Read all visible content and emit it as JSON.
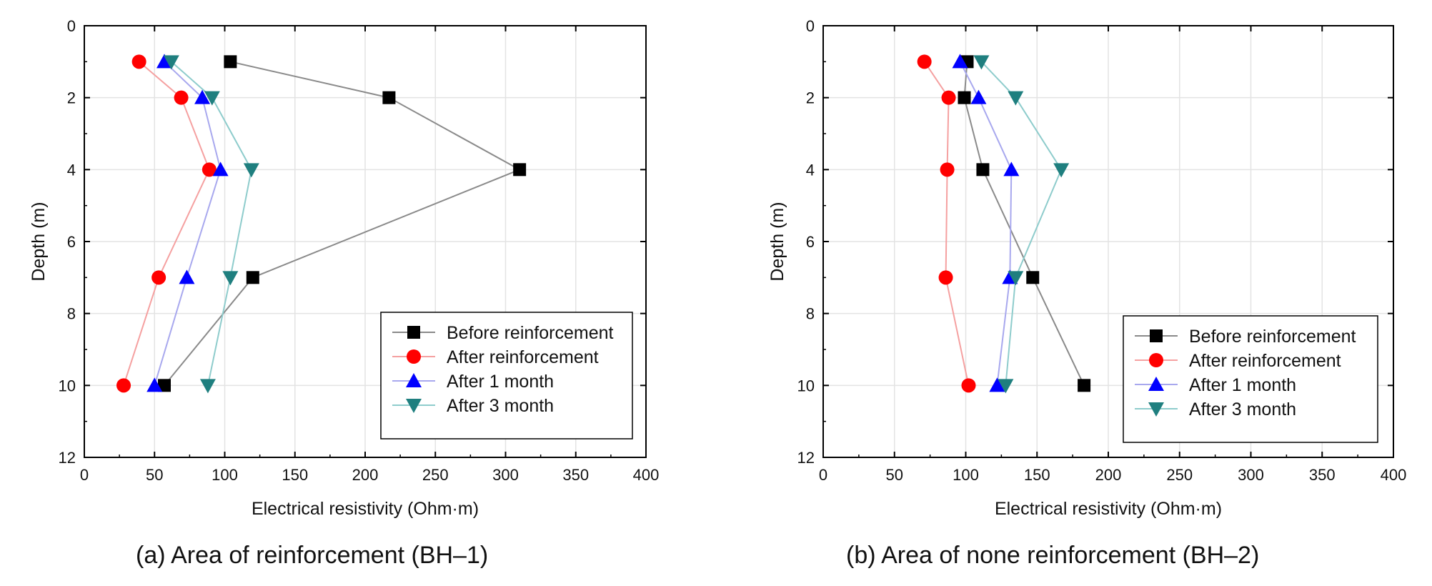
{
  "chart_data": [
    {
      "type": "line",
      "panel": "a",
      "caption": "(a) Area of reinforcement (BH–1)",
      "xlabel": "Electrical resistivity (Ohm·m)",
      "ylabel": "Depth (m)",
      "xlim": [
        0,
        400
      ],
      "ylim": [
        12,
        0
      ],
      "xticks": [
        0,
        50,
        100,
        150,
        200,
        250,
        300,
        350,
        400
      ],
      "yticks": [
        0,
        2,
        4,
        6,
        8,
        10,
        12
      ],
      "grid": true,
      "legend_position": "bottom-right",
      "series": [
        {
          "name": "Before reinforcement",
          "color": "#000000",
          "line_color": "#8a8a8a",
          "marker": "square",
          "x": [
            104,
            217,
            310,
            120,
            57
          ],
          "y": [
            1,
            2,
            4,
            7,
            10
          ]
        },
        {
          "name": "After reinforcement",
          "color": "#ff0000",
          "line_color": "#f5a0a0",
          "marker": "circle",
          "x": [
            39,
            69,
            89,
            53,
            28
          ],
          "y": [
            1,
            2,
            4,
            7,
            10
          ]
        },
        {
          "name": "After 1 month",
          "color": "#0000ff",
          "line_color": "#a8a8ee",
          "marker": "triangle-up",
          "x": [
            57,
            84,
            97,
            73,
            50
          ],
          "y": [
            1,
            2,
            4,
            7,
            10
          ]
        },
        {
          "name": "After 3 month",
          "color": "#1f7f7f",
          "line_color": "#8ecccc",
          "marker": "triangle-down",
          "x": [
            62,
            91,
            119,
            104,
            88
          ],
          "y": [
            1,
            2,
            4,
            7,
            10
          ]
        }
      ]
    },
    {
      "type": "line",
      "panel": "b",
      "caption": "(b) Area of none reinforcement (BH–2)",
      "xlabel": "Electrical resistivity (Ohm·m)",
      "ylabel": "Depth (m)",
      "xlim": [
        0,
        400
      ],
      "ylim": [
        12,
        0
      ],
      "xticks": [
        0,
        50,
        100,
        150,
        200,
        250,
        300,
        350,
        400
      ],
      "yticks": [
        0,
        2,
        4,
        6,
        8,
        10,
        12
      ],
      "grid": true,
      "legend_position": "bottom-right",
      "series": [
        {
          "name": "Before reinforcement",
          "color": "#000000",
          "line_color": "#8a8a8a",
          "marker": "square",
          "x": [
            101,
            99,
            112,
            147,
            183
          ],
          "y": [
            1,
            2,
            4,
            7,
            10
          ]
        },
        {
          "name": "After reinforcement",
          "color": "#ff0000",
          "line_color": "#f5a0a0",
          "marker": "circle",
          "x": [
            71,
            88,
            87,
            86,
            102
          ],
          "y": [
            1,
            2,
            4,
            7,
            10
          ]
        },
        {
          "name": "After 1 month",
          "color": "#0000ff",
          "line_color": "#a8a8ee",
          "marker": "triangle-up",
          "x": [
            96,
            109,
            132,
            131,
            122
          ],
          "y": [
            1,
            2,
            4,
            7,
            10
          ]
        },
        {
          "name": "After 3 month",
          "color": "#1f7f7f",
          "line_color": "#8ecccc",
          "marker": "triangle-down",
          "x": [
            111,
            135,
            167,
            135,
            128
          ],
          "y": [
            1,
            2,
            4,
            7,
            10
          ]
        }
      ]
    }
  ]
}
